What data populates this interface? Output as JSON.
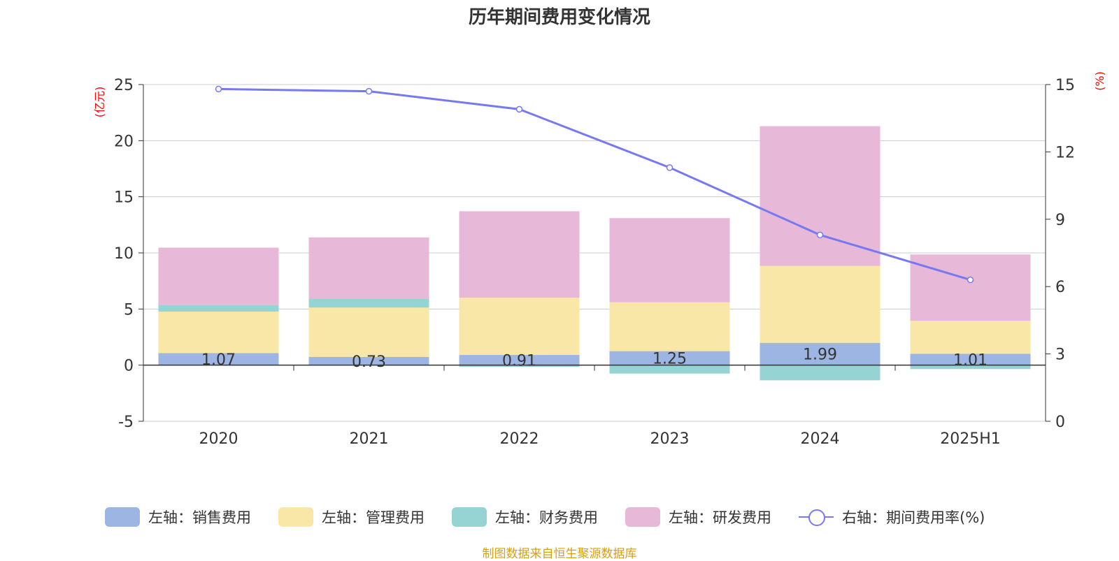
{
  "chart_data": {
    "type": "bar",
    "stacked": true,
    "title": "历年期间费用变化情况",
    "categories": [
      "2020",
      "2021",
      "2022",
      "2023",
      "2024",
      "2025H1"
    ],
    "left_axis": {
      "label": "(亿元)",
      "range": [
        -5,
        25
      ],
      "ticks": [
        "25",
        "20",
        "15",
        "10",
        "5",
        "0",
        "-5"
      ]
    },
    "right_axis": {
      "label": "(%)",
      "range": [
        0,
        15
      ],
      "ticks": [
        "15",
        "12",
        "9",
        "6",
        "3",
        "0"
      ]
    },
    "series": [
      {
        "name": "左轴：销售费用",
        "type": "bar",
        "axis": "left",
        "color": "#9db5e2",
        "values": [
          1.07,
          0.73,
          0.91,
          1.25,
          1.99,
          1.01
        ],
        "data_labels": [
          "1.07",
          "0.73",
          "0.91",
          "1.25",
          "1.99",
          "1.01"
        ]
      },
      {
        "name": "左轴：管理费用",
        "type": "bar",
        "axis": "left",
        "color": "#f8e7a7",
        "values": [
          3.7,
          4.4,
          5.1,
          4.35,
          6.85,
          2.95
        ]
      },
      {
        "name": "左轴：财务费用",
        "type": "bar",
        "axis": "left",
        "color": "#96d4d3",
        "values": [
          0.6,
          0.8,
          -0.15,
          -0.75,
          -1.35,
          -0.35
        ]
      },
      {
        "name": "左轴：研发费用",
        "type": "bar",
        "axis": "left",
        "color": "#e8b8d9",
        "values": [
          5.1,
          5.45,
          7.7,
          7.5,
          12.45,
          5.9
        ]
      },
      {
        "name": "右轴：期间费用率(%)",
        "type": "line",
        "axis": "right",
        "color": "#7779f0",
        "values": [
          14.8,
          14.7,
          13.9,
          11.3,
          8.3,
          6.3
        ]
      }
    ],
    "grid": true,
    "legend_position": "bottom"
  },
  "footer": {
    "source": "制图数据来自恒生聚源数据库"
  }
}
